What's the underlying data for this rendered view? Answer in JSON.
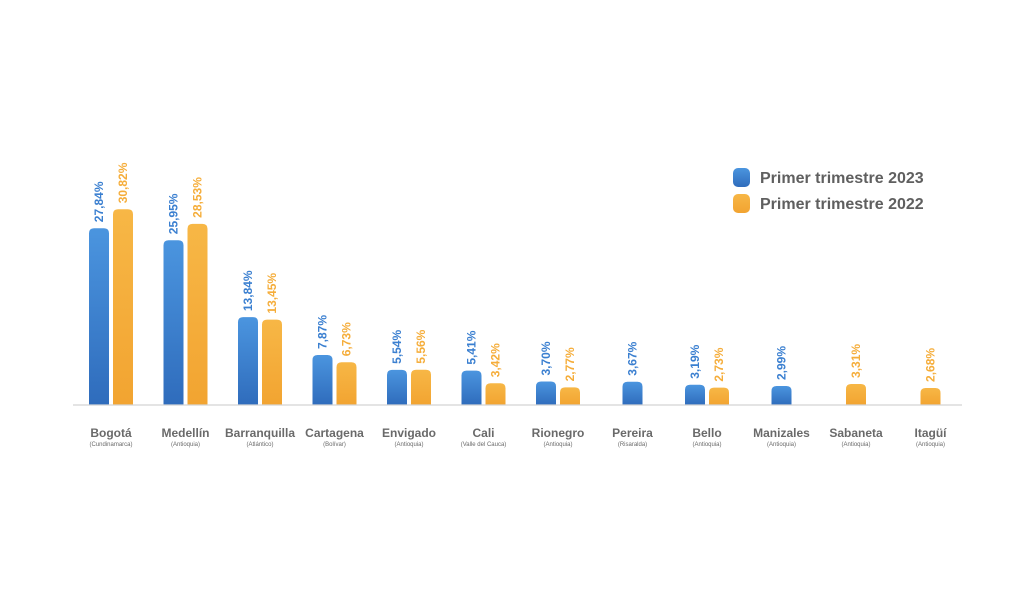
{
  "chart_data": {
    "type": "bar",
    "categories": [
      {
        "name": "Bogotá",
        "region": "(Cundinamarca)"
      },
      {
        "name": "Medellín",
        "region": "(Antioquia)"
      },
      {
        "name": "Barranquilla",
        "region": "(Atlántico)"
      },
      {
        "name": "Cartagena",
        "region": "(Bolívar)"
      },
      {
        "name": "Envigado",
        "region": "(Antioquia)"
      },
      {
        "name": "Cali",
        "region": "(Valle del Cauca)"
      },
      {
        "name": "Rionegro",
        "region": "(Antioquia)"
      },
      {
        "name": "Pereira",
        "region": "(Risaralda)"
      },
      {
        "name": "Bello",
        "region": "(Antioquia)"
      },
      {
        "name": "Manizales",
        "region": "(Antioquia)"
      },
      {
        "name": "Sabaneta",
        "region": "(Antioquia)"
      },
      {
        "name": "Itagüí",
        "region": "(Antioquia)"
      }
    ],
    "series": [
      {
        "name": "Primer trimestre 2023",
        "color": "#3a7fd0",
        "values": [
          27.84,
          25.95,
          13.84,
          7.87,
          5.54,
          5.41,
          3.7,
          3.67,
          3.19,
          2.99,
          null,
          null
        ],
        "labels": [
          "27,84%",
          "25,95%",
          "13,84%",
          "7,87%",
          "5,54%",
          "5,41%",
          "3,70%",
          "3,67%",
          "3,19%",
          "2,99%",
          null,
          null
        ]
      },
      {
        "name": "Primer trimestre 2022",
        "color": "#f5ad3a",
        "values": [
          30.82,
          28.53,
          13.45,
          6.73,
          5.56,
          3.42,
          2.77,
          null,
          2.73,
          null,
          3.31,
          2.68
        ],
        "labels": [
          "30,82%",
          "28,53%",
          "13,45%",
          "6,73%",
          "5,56%",
          "3,42%",
          "2,77%",
          null,
          "2,73%",
          null,
          "3,31%",
          "2,68%"
        ]
      }
    ],
    "title": "",
    "xlabel": "",
    "ylabel": "",
    "ylim": [
      0,
      35
    ],
    "grid": false,
    "legend_position": "top-right"
  }
}
